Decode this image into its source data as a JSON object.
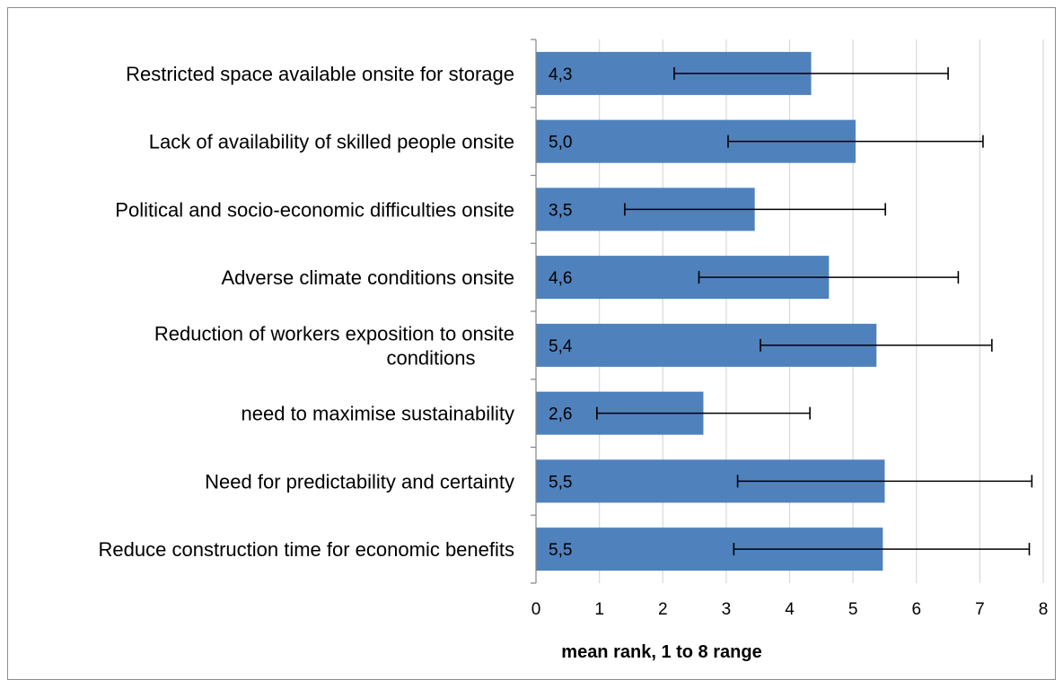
{
  "chart_data": {
    "type": "bar",
    "orientation": "horizontal",
    "xlabel": "mean rank, 1 to 8 range",
    "xlim": [
      0,
      8
    ],
    "xticks": [
      "0",
      "1",
      "2",
      "3",
      "4",
      "5",
      "6",
      "7",
      "8"
    ],
    "grid": true,
    "legend": "none",
    "bar_color": "#4f81bd",
    "grid_color": "#d9d9d9",
    "categories": [
      [
        "Restricted space available onsite for storage"
      ],
      [
        "Lack of availability of skilled people onsite"
      ],
      [
        "Political and socio-economic difficulties onsite"
      ],
      [
        "Adverse climate conditions onsite"
      ],
      [
        "Reduction of workers exposition to onsite",
        "conditions"
      ],
      [
        "need to maximise sustainability"
      ],
      [
        "Need for predictability and certainty"
      ],
      [
        "Reduce construction time for economic benefits"
      ]
    ],
    "values": [
      4.34,
      5.04,
      3.45,
      4.62,
      5.37,
      2.64,
      5.5,
      5.47
    ],
    "data_labels": [
      "4,3",
      "5,0",
      "3,5",
      "4,6",
      "5,4",
      "2,6",
      "5,5",
      "5,5"
    ],
    "error_bars": [
      [
        2.18,
        6.5
      ],
      [
        3.03,
        7.05
      ],
      [
        1.4,
        5.51
      ],
      [
        2.57,
        6.66
      ],
      [
        3.54,
        7.19
      ],
      [
        0.96,
        4.32
      ],
      [
        3.18,
        7.82
      ],
      [
        3.12,
        7.78
      ]
    ]
  }
}
